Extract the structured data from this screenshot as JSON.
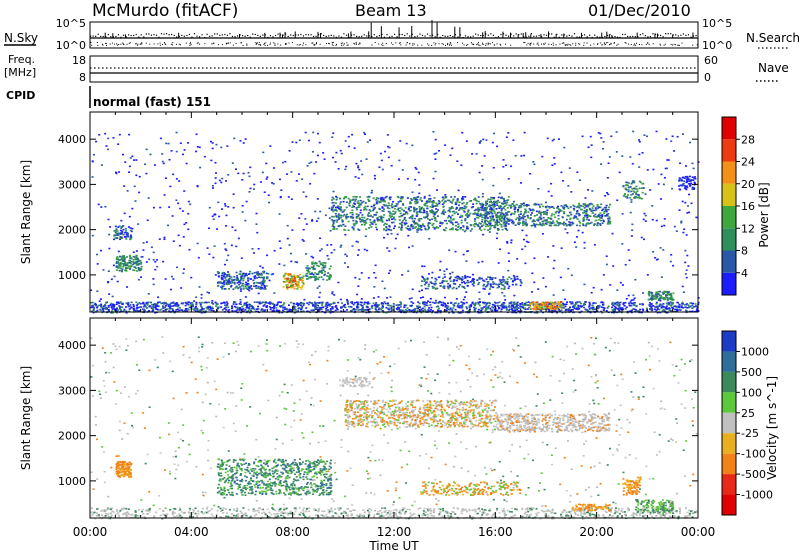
{
  "header": {
    "station": "McMurdo (fitACF)",
    "beam": "Beam 13",
    "date": "01/Dec/2010"
  },
  "left_labels": {
    "nsky": "N.Sky",
    "freq_line1": "Freq.",
    "freq_line2": "[MHz]",
    "cpid": "CPID"
  },
  "right_labels": {
    "nsearch": "N.Search",
    "nave": "Nave"
  },
  "cpid_text": "normal (fast) 151",
  "noise_axis": {
    "left_top": "10^5",
    "left_bottom": "10^0",
    "right_top": "10^5",
    "right_bottom": "10^0"
  },
  "freq_axis": {
    "left_ticks": [
      "18",
      "8"
    ],
    "right_ticks": [
      "60",
      "0"
    ]
  },
  "x_axis": {
    "ticks": [
      "00:00",
      "04:00",
      "08:00",
      "12:00",
      "16:00",
      "20:00",
      "00:00"
    ],
    "label": "Time UT"
  },
  "range_axis": {
    "label": "Slant Range [km]",
    "ticks": [
      "1000",
      "2000",
      "3000",
      "4000"
    ]
  },
  "power_scale": {
    "label": "Power [dB]",
    "ticks": [
      "4",
      "8",
      "12",
      "16",
      "20",
      "24",
      "28"
    ],
    "colors": [
      "#1c1cff",
      "#2a58a8",
      "#2f8f5a",
      "#3ea83e",
      "#d8c21a",
      "#f29018",
      "#ee3a12",
      "#e00000"
    ]
  },
  "velocity_scale": {
    "label": "Velocity [m s^-1]",
    "ticks": [
      "1000",
      "500",
      "100",
      "25",
      "-25",
      "-100",
      "-500",
      "-1000"
    ],
    "colors": [
      "#1c3cc8",
      "#2d6e9a",
      "#3b8a5c",
      "#5ec83c",
      "#c0c0c0",
      "#e8b020",
      "#f28218",
      "#e82818",
      "#e00000"
    ]
  },
  "chart_data": {
    "type": "heatmap",
    "title": "McMurdo (fitACF) Beam 13 01/Dec/2010",
    "xlabel": "Time UT",
    "ylabel": "Slant Range [km]",
    "x_range": [
      "00:00",
      "24:00"
    ],
    "y_range": [
      180,
      4600
    ],
    "panels": [
      {
        "name": "Power",
        "unit": "dB",
        "colorbar_ticks": [
          4,
          8,
          12,
          16,
          20,
          24,
          28
        ],
        "regions": [
          {
            "t_start": 1.0,
            "t_end": 2.0,
            "r_min": 1100,
            "r_max": 1450,
            "level": "medium"
          },
          {
            "t_start": 5.0,
            "t_end": 7.0,
            "r_min": 700,
            "r_max": 1100,
            "level": "low-medium"
          },
          {
            "t_start": 7.8,
            "t_end": 8.3,
            "r_min": 700,
            "r_max": 1000,
            "level": "high"
          },
          {
            "t_start": 9.5,
            "t_end": 16.5,
            "r_min": 2000,
            "r_max": 2700,
            "level": "medium"
          },
          {
            "t_start": 15.5,
            "t_end": 20.5,
            "r_min": 2100,
            "r_max": 2600,
            "level": "medium"
          },
          {
            "t_start": 17.5,
            "t_end": 18.5,
            "r_min": 250,
            "r_max": 400,
            "level": "high"
          },
          {
            "t_start": 22.0,
            "t_end": 23.0,
            "r_min": 450,
            "r_max": 600,
            "level": "medium"
          }
        ]
      },
      {
        "name": "Velocity",
        "unit": "m s^-1",
        "colorbar_ticks": [
          1000,
          500,
          100,
          25,
          -25,
          -100,
          -500,
          -1000
        ],
        "regions": [
          {
            "t_start": 1.0,
            "t_end": 1.5,
            "r_min": 1100,
            "r_max": 1450,
            "velocity": "-100 to -500"
          },
          {
            "t_start": 5.0,
            "t_end": 9.5,
            "r_min": 700,
            "r_max": 1500,
            "velocity": "100 to 500"
          },
          {
            "t_start": 10.0,
            "t_end": 16.0,
            "r_min": 2200,
            "r_max": 2800,
            "velocity": "-25 to 25"
          },
          {
            "t_start": 16.0,
            "t_end": 20.5,
            "r_min": 2100,
            "r_max": 2500,
            "velocity": "-25 to 25"
          },
          {
            "t_start": 21.0,
            "t_end": 21.7,
            "r_min": 700,
            "r_max": 1100,
            "velocity": "-100 to -500"
          },
          {
            "t_start": 21.5,
            "t_end": 23.0,
            "r_min": 300,
            "r_max": 600,
            "velocity": "25 to 100"
          }
        ]
      }
    ]
  }
}
